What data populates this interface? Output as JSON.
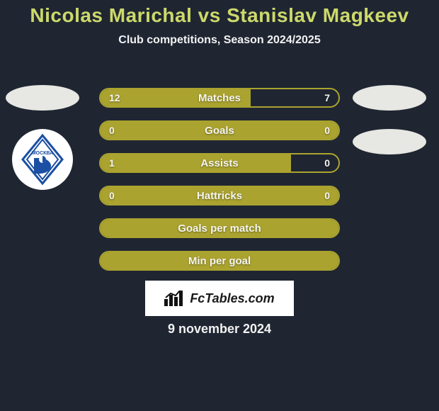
{
  "background_color": "#1f2632",
  "title": {
    "text": "Nicolas Marichal vs Stanislav Magkeev",
    "color": "#cdd96a",
    "fontsize": 28
  },
  "subtitle": {
    "text": "Club competitions, Season 2024/2025",
    "color": "#f2f2f2",
    "fontsize": 16
  },
  "avatar_ellipse_color": "#e7e7e3",
  "club_badge": {
    "bg": "#ffffff",
    "diamond_fill": "#ffffff",
    "diamond_stroke": "#1a4fa3",
    "inner_text": "МОСКВА"
  },
  "bar_style": {
    "track_bg": "rgba(0,0,0,0)",
    "border_color": "#aba32f",
    "fill_color": "#aba32f",
    "text_color": "#f5f5f0",
    "label_fontsize": 15,
    "value_fontsize": 14,
    "track_radius": 14
  },
  "stats": [
    {
      "label": "Matches",
      "left_val": "12",
      "right_val": "7",
      "left_pct": 63,
      "right_pct": 37,
      "left_filled": true,
      "right_filled": false
    },
    {
      "label": "Goals",
      "left_val": "0",
      "right_val": "0",
      "left_pct": 100,
      "right_pct": 0,
      "left_filled": true,
      "right_filled": false
    },
    {
      "label": "Assists",
      "left_val": "1",
      "right_val": "0",
      "left_pct": 80,
      "right_pct": 20,
      "left_filled": true,
      "right_filled": false
    },
    {
      "label": "Hattricks",
      "left_val": "0",
      "right_val": "0",
      "left_pct": 100,
      "right_pct": 0,
      "left_filled": true,
      "right_filled": false
    },
    {
      "label": "Goals per match",
      "left_val": "",
      "right_val": "",
      "left_pct": 100,
      "right_pct": 0,
      "left_filled": true,
      "right_filled": false
    },
    {
      "label": "Min per goal",
      "left_val": "",
      "right_val": "",
      "left_pct": 100,
      "right_pct": 0,
      "left_filled": true,
      "right_filled": false
    }
  ],
  "brand": {
    "bg": "#ffffff",
    "text": "FcTables.com",
    "text_color": "#1a1a1a",
    "fontsize": 18
  },
  "date": {
    "text": "9 november 2024",
    "color": "#f2f2f2",
    "fontsize": 18
  }
}
